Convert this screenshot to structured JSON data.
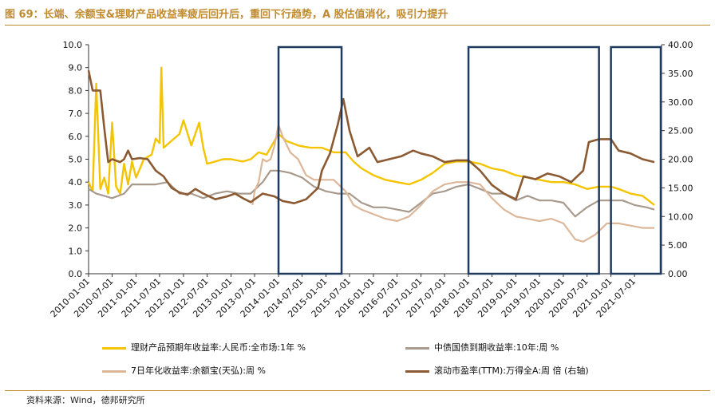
{
  "title": "图 69：长端、余额宝&理财产品收益率疲后回升后，重回下行趋势，A 股估值消化，吸引力提升",
  "source": "资料来源：Wind，德邦研究所",
  "colors": {
    "wealth": "#f5c400",
    "bond10y": "#a89a8c",
    "yuebao": "#dcb79a",
    "pe": "#8b5a32",
    "box": "#1f3a5f",
    "accent": "#c08a2e"
  },
  "legend": [
    {
      "label": "理财产品预期年收益率:人民币:全市场:1年 %",
      "color": "#f5c400"
    },
    {
      "label": "中债国债到期收益率:10年:周 %",
      "color": "#a89a8c"
    },
    {
      "label": "7日年化收益率:余额宝(天弘):周 %",
      "color": "#dcb79a"
    },
    {
      "label": "滚动市盈率(TTM):万得全A:周 倍 (右轴)",
      "color": "#8b5a32"
    }
  ],
  "chart_data": {
    "type": "line",
    "x_ticks": [
      "2010-01-01",
      "2010-07-01",
      "2011-01-01",
      "2011-07-01",
      "2012-01-01",
      "2012-07-01",
      "2013-01-01",
      "2013-07-01",
      "2014-01-01",
      "2014-07-01",
      "2015-01-01",
      "2015-07-01",
      "2016-01-01",
      "2016-07-01",
      "2017-01-01",
      "2017-07-01",
      "2018-01-01",
      "2018-07-01",
      "2019-01-01",
      "2019-07-01",
      "2020-01-01",
      "2020-07-01",
      "2021-01-01",
      "2021-07-01"
    ],
    "y_left": {
      "min": 0,
      "max": 10,
      "ticks": [
        "0.0",
        "1.0",
        "2.0",
        "3.0",
        "4.0",
        "5.0",
        "6.0",
        "7.0",
        "8.0",
        "9.0",
        "10.0"
      ]
    },
    "y_right": {
      "min": 0,
      "max": 40,
      "ticks": [
        "0.00",
        "5.00",
        "10.00",
        "15.00",
        "20.00",
        "25.00",
        "30.00",
        "35.00",
        "40.00"
      ]
    },
    "highlight_periods": [
      [
        "2014-01-01",
        "2015-05-01"
      ],
      [
        "2018-01-01",
        "2020-10-01"
      ],
      [
        "2021-01-01",
        "2022-02-01"
      ]
    ],
    "series": [
      {
        "name": "理财产品预期年收益率:人民币:全市场:1年 %",
        "axis": "left",
        "color": "#f5c400",
        "points": [
          [
            "2010-01-01",
            4.0
          ],
          [
            "2010-02-01",
            3.6
          ],
          [
            "2010-03-01",
            8.3
          ],
          [
            "2010-04-01",
            3.7
          ],
          [
            "2010-05-01",
            4.2
          ],
          [
            "2010-06-01",
            3.5
          ],
          [
            "2010-07-01",
            6.6
          ],
          [
            "2010-08-01",
            3.8
          ],
          [
            "2010-09-01",
            3.5
          ],
          [
            "2010-10-01",
            4.8
          ],
          [
            "2010-11-01",
            3.9
          ],
          [
            "2010-12-01",
            4.9
          ],
          [
            "2011-01-01",
            4.2
          ],
          [
            "2011-02-01",
            4.6
          ],
          [
            "2011-03-01",
            5.0
          ],
          [
            "2011-05-01",
            5.2
          ],
          [
            "2011-06-01",
            5.9
          ],
          [
            "2011-07-01",
            5.7
          ],
          [
            "2011-07-15",
            9.0
          ],
          [
            "2011-08-01",
            5.5
          ],
          [
            "2011-10-01",
            5.8
          ],
          [
            "2011-12-01",
            6.1
          ],
          [
            "2012-01-01",
            6.7
          ],
          [
            "2012-03-01",
            5.6
          ],
          [
            "2012-05-01",
            6.6
          ],
          [
            "2012-06-01",
            5.5
          ],
          [
            "2012-07-01",
            4.8
          ],
          [
            "2012-09-01",
            4.9
          ],
          [
            "2012-11-01",
            5.0
          ],
          [
            "2013-01-01",
            5.0
          ],
          [
            "2013-04-01",
            4.9
          ],
          [
            "2013-06-01",
            5.0
          ],
          [
            "2013-08-01",
            5.3
          ],
          [
            "2013-10-01",
            5.2
          ],
          [
            "2013-12-01",
            5.8
          ],
          [
            "2014-01-01",
            6.1
          ],
          [
            "2014-03-01",
            5.8
          ],
          [
            "2014-06-01",
            5.6
          ],
          [
            "2014-09-01",
            5.5
          ],
          [
            "2014-12-01",
            5.5
          ],
          [
            "2015-03-01",
            5.3
          ],
          [
            "2015-06-01",
            5.3
          ],
          [
            "2015-08-01",
            4.9
          ],
          [
            "2015-10-01",
            4.6
          ],
          [
            "2016-01-01",
            4.3
          ],
          [
            "2016-04-01",
            4.1
          ],
          [
            "2016-07-01",
            4.0
          ],
          [
            "2016-10-01",
            3.9
          ],
          [
            "2017-01-01",
            4.1
          ],
          [
            "2017-04-01",
            4.4
          ],
          [
            "2017-07-01",
            4.8
          ],
          [
            "2017-10-01",
            4.9
          ],
          [
            "2018-01-01",
            4.9
          ],
          [
            "2018-04-01",
            4.8
          ],
          [
            "2018-07-01",
            4.6
          ],
          [
            "2018-10-01",
            4.5
          ],
          [
            "2019-01-01",
            4.3
          ],
          [
            "2019-04-01",
            4.2
          ],
          [
            "2019-07-01",
            4.1
          ],
          [
            "2019-10-01",
            4.0
          ],
          [
            "2020-01-01",
            4.0
          ],
          [
            "2020-04-01",
            3.9
          ],
          [
            "2020-07-01",
            3.7
          ],
          [
            "2020-10-01",
            3.8
          ],
          [
            "2021-01-01",
            3.8
          ],
          [
            "2021-03-01",
            3.7
          ],
          [
            "2021-06-01",
            3.5
          ],
          [
            "2021-09-01",
            3.4
          ],
          [
            "2021-12-01",
            3.0
          ]
        ]
      },
      {
        "name": "中债国债到期收益率:10年:周 %",
        "axis": "left",
        "color": "#a89a8c",
        "points": [
          [
            "2010-01-01",
            3.7
          ],
          [
            "2010-03-01",
            3.5
          ],
          [
            "2010-05-01",
            3.4
          ],
          [
            "2010-07-01",
            3.3
          ],
          [
            "2010-10-01",
            3.5
          ],
          [
            "2010-12-01",
            3.9
          ],
          [
            "2011-03-01",
            3.9
          ],
          [
            "2011-06-01",
            3.9
          ],
          [
            "2011-09-01",
            4.0
          ],
          [
            "2011-12-01",
            3.5
          ],
          [
            "2012-03-01",
            3.5
          ],
          [
            "2012-06-01",
            3.3
          ],
          [
            "2012-09-01",
            3.5
          ],
          [
            "2012-12-01",
            3.6
          ],
          [
            "2013-03-01",
            3.5
          ],
          [
            "2013-06-01",
            3.5
          ],
          [
            "2013-09-01",
            4.0
          ],
          [
            "2013-11-01",
            4.5
          ],
          [
            "2014-01-01",
            4.5
          ],
          [
            "2014-04-01",
            4.4
          ],
          [
            "2014-07-01",
            4.2
          ],
          [
            "2014-10-01",
            3.8
          ],
          [
            "2015-01-01",
            3.6
          ],
          [
            "2015-04-01",
            3.5
          ],
          [
            "2015-07-01",
            3.5
          ],
          [
            "2015-10-01",
            3.1
          ],
          [
            "2016-01-01",
            2.9
          ],
          [
            "2016-04-01",
            2.9
          ],
          [
            "2016-07-01",
            2.8
          ],
          [
            "2016-10-01",
            2.7
          ],
          [
            "2017-01-01",
            3.1
          ],
          [
            "2017-04-01",
            3.5
          ],
          [
            "2017-07-01",
            3.6
          ],
          [
            "2017-10-01",
            3.8
          ],
          [
            "2018-01-01",
            3.9
          ],
          [
            "2018-04-01",
            3.7
          ],
          [
            "2018-07-01",
            3.5
          ],
          [
            "2018-10-01",
            3.5
          ],
          [
            "2019-01-01",
            3.2
          ],
          [
            "2019-04-01",
            3.4
          ],
          [
            "2019-07-01",
            3.2
          ],
          [
            "2019-10-01",
            3.2
          ],
          [
            "2020-01-01",
            3.1
          ],
          [
            "2020-04-01",
            2.5
          ],
          [
            "2020-07-01",
            2.9
          ],
          [
            "2020-10-01",
            3.2
          ],
          [
            "2021-01-01",
            3.2
          ],
          [
            "2021-04-01",
            3.2
          ],
          [
            "2021-07-01",
            3.0
          ],
          [
            "2021-10-01",
            2.9
          ],
          [
            "2021-12-01",
            2.8
          ]
        ]
      },
      {
        "name": "7日年化收益率:余额宝(天弘):周 %",
        "axis": "left",
        "color": "#dcb79a",
        "points": [
          [
            "2013-06-15",
            3.0
          ],
          [
            "2013-07-01",
            3.6
          ],
          [
            "2013-08-01",
            4.0
          ],
          [
            "2013-09-01",
            5.0
          ],
          [
            "2013-10-01",
            4.9
          ],
          [
            "2013-11-01",
            5.0
          ],
          [
            "2013-12-01",
            5.6
          ],
          [
            "2014-01-01",
            6.5
          ],
          [
            "2014-02-01",
            6.0
          ],
          [
            "2014-04-01",
            5.3
          ],
          [
            "2014-06-01",
            5.0
          ],
          [
            "2014-08-01",
            4.3
          ],
          [
            "2014-10-01",
            4.1
          ],
          [
            "2014-12-01",
            4.1
          ],
          [
            "2015-03-01",
            4.1
          ],
          [
            "2015-06-01",
            3.6
          ],
          [
            "2015-08-01",
            3.0
          ],
          [
            "2015-10-01",
            2.8
          ],
          [
            "2016-01-01",
            2.6
          ],
          [
            "2016-04-01",
            2.4
          ],
          [
            "2016-07-01",
            2.3
          ],
          [
            "2016-10-01",
            2.5
          ],
          [
            "2017-01-01",
            3.0
          ],
          [
            "2017-04-01",
            3.6
          ],
          [
            "2017-07-01",
            3.9
          ],
          [
            "2017-10-01",
            4.0
          ],
          [
            "2018-01-01",
            4.0
          ],
          [
            "2018-04-01",
            3.9
          ],
          [
            "2018-07-01",
            3.3
          ],
          [
            "2018-10-01",
            2.8
          ],
          [
            "2019-01-01",
            2.5
          ],
          [
            "2019-04-01",
            2.4
          ],
          [
            "2019-07-01",
            2.3
          ],
          [
            "2019-10-01",
            2.4
          ],
          [
            "2020-01-01",
            2.2
          ],
          [
            "2020-04-01",
            1.5
          ],
          [
            "2020-06-01",
            1.4
          ],
          [
            "2020-09-01",
            1.7
          ],
          [
            "2020-12-01",
            2.2
          ],
          [
            "2021-03-01",
            2.2
          ],
          [
            "2021-06-01",
            2.1
          ],
          [
            "2021-09-01",
            2.0
          ],
          [
            "2021-12-01",
            2.0
          ]
        ]
      },
      {
        "name": "滚动市盈率(TTM):万得全A:周 倍 (右轴)",
        "axis": "right",
        "color": "#8b5a32",
        "points": [
          [
            "2010-01-01",
            35.5
          ],
          [
            "2010-02-01",
            32.0
          ],
          [
            "2010-04-01",
            32.0
          ],
          [
            "2010-05-01",
            25.5
          ],
          [
            "2010-06-01",
            19.5
          ],
          [
            "2010-07-01",
            20.0
          ],
          [
            "2010-09-01",
            19.5
          ],
          [
            "2010-10-01",
            20.0
          ],
          [
            "2010-11-01",
            21.5
          ],
          [
            "2010-12-01",
            20.0
          ],
          [
            "2011-02-01",
            20.2
          ],
          [
            "2011-04-01",
            20.0
          ],
          [
            "2011-06-01",
            18.0
          ],
          [
            "2011-08-01",
            17.0
          ],
          [
            "2011-10-01",
            15.0
          ],
          [
            "2011-12-01",
            14.2
          ],
          [
            "2012-02-01",
            13.8
          ],
          [
            "2012-04-01",
            14.8
          ],
          [
            "2012-06-01",
            14.0
          ],
          [
            "2012-09-01",
            13.0
          ],
          [
            "2012-12-01",
            13.5
          ],
          [
            "2013-02-01",
            14.0
          ],
          [
            "2013-04-01",
            13.2
          ],
          [
            "2013-06-01",
            12.5
          ],
          [
            "2013-09-01",
            14.0
          ],
          [
            "2013-12-01",
            13.5
          ],
          [
            "2014-02-01",
            12.7
          ],
          [
            "2014-05-01",
            12.3
          ],
          [
            "2014-08-01",
            13.0
          ],
          [
            "2014-11-01",
            15.0
          ],
          [
            "2014-12-01",
            18.0
          ],
          [
            "2015-02-01",
            21.0
          ],
          [
            "2015-04-01",
            26.0
          ],
          [
            "2015-05-15",
            30.5
          ],
          [
            "2015-07-01",
            25.0
          ],
          [
            "2015-09-01",
            20.5
          ],
          [
            "2015-12-01",
            22.0
          ],
          [
            "2016-02-01",
            19.5
          ],
          [
            "2016-05-01",
            20.0
          ],
          [
            "2016-08-01",
            20.5
          ],
          [
            "2016-11-01",
            21.5
          ],
          [
            "2017-01-01",
            21.0
          ],
          [
            "2017-04-01",
            20.5
          ],
          [
            "2017-07-01",
            19.5
          ],
          [
            "2017-10-01",
            19.8
          ],
          [
            "2018-01-01",
            19.8
          ],
          [
            "2018-04-01",
            18.0
          ],
          [
            "2018-07-01",
            15.5
          ],
          [
            "2018-10-01",
            14.0
          ],
          [
            "2019-01-01",
            13.0
          ],
          [
            "2019-03-01",
            17.0
          ],
          [
            "2019-06-01",
            16.5
          ],
          [
            "2019-09-01",
            17.5
          ],
          [
            "2019-12-01",
            17.0
          ],
          [
            "2020-03-01",
            16.0
          ],
          [
            "2020-06-01",
            18.0
          ],
          [
            "2020-07-15",
            23.0
          ],
          [
            "2020-10-01",
            23.5
          ],
          [
            "2021-01-01",
            23.5
          ],
          [
            "2021-03-01",
            21.5
          ],
          [
            "2021-06-01",
            21.0
          ],
          [
            "2021-09-01",
            20.0
          ],
          [
            "2021-12-01",
            19.5
          ]
        ]
      }
    ]
  }
}
